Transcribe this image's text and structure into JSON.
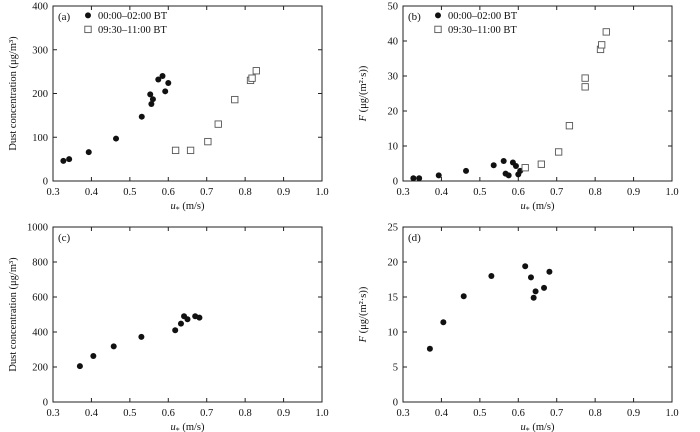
{
  "chart_data": [
    {
      "type": "scatter",
      "tag": "(a)",
      "ylabel": "Dust concentration (μg/m³)",
      "xlabel_main": "u",
      "xlabel_sub": "*",
      "xlabel_unit": " (m/s)",
      "xlim": [
        0.3,
        1.0
      ],
      "ylim": [
        0,
        400
      ],
      "xticks": [
        0.3,
        0.4,
        0.5,
        0.6,
        0.7,
        0.8,
        0.9,
        1.0
      ],
      "xtick_labels": [
        "0.3",
        "0.4",
        "0.5",
        "0.6",
        "0.7",
        "0.8",
        "0.9",
        "1.0"
      ],
      "yticks": [
        0,
        100,
        200,
        300,
        400
      ],
      "ytick_labels": [
        "0",
        "100",
        "200",
        "300",
        "400"
      ],
      "legend": "top-left",
      "series": [
        {
          "name": "00:00–02:00 BT",
          "marker": "filled-circle",
          "x": [
            0.327,
            0.342,
            0.393,
            0.464,
            0.531,
            0.553,
            0.556,
            0.56,
            0.574,
            0.585,
            0.592,
            0.6
          ],
          "y": [
            46,
            50,
            66,
            97,
            147,
            198,
            176,
            187,
            232,
            240,
            205,
            224
          ]
        },
        {
          "name": "09:30–11:00 BT",
          "marker": "open-square",
          "x": [
            0.619,
            0.658,
            0.703,
            0.73,
            0.773,
            0.814,
            0.818,
            0.829
          ],
          "y": [
            70,
            70,
            90,
            130,
            186,
            230,
            235,
            252
          ]
        }
      ]
    },
    {
      "type": "scatter",
      "tag": "(b)",
      "ylabel_main": "F",
      "ylabel_unit": " (μg/(m²·s))",
      "xlabel_main": "u",
      "xlabel_sub": "*",
      "xlabel_unit": " (m/s)",
      "xlim": [
        0.3,
        1.0
      ],
      "ylim": [
        0,
        50
      ],
      "xticks": [
        0.3,
        0.4,
        0.5,
        0.6,
        0.7,
        0.8,
        0.9,
        1.0
      ],
      "xtick_labels": [
        "0.3",
        "0.4",
        "0.5",
        "0.6",
        "0.7",
        "0.8",
        "0.9",
        "1.0"
      ],
      "yticks": [
        0,
        10,
        20,
        30,
        40,
        50
      ],
      "ytick_labels": [
        "0",
        "10",
        "20",
        "30",
        "40",
        "50"
      ],
      "legend": "top-left",
      "series": [
        {
          "name": "00:00–02:00 BT",
          "marker": "filled-circle",
          "x": [
            0.327,
            0.342,
            0.393,
            0.464,
            0.536,
            0.562,
            0.567,
            0.575,
            0.586,
            0.594,
            0.6,
            0.605
          ],
          "y": [
            0.8,
            0.8,
            1.6,
            2.9,
            4.5,
            5.7,
            2.1,
            1.6,
            5.3,
            4.3,
            1.9,
            2.9
          ]
        },
        {
          "name": "09:30–11:00 BT",
          "marker": "open-square",
          "x": [
            0.618,
            0.66,
            0.705,
            0.733,
            0.774,
            0.774,
            0.814,
            0.817,
            0.829
          ],
          "y": [
            3.8,
            4.8,
            8.3,
            15.8,
            26.9,
            29.4,
            37.6,
            38.9,
            42.6
          ]
        }
      ]
    },
    {
      "type": "scatter",
      "tag": "(c)",
      "ylabel": "Dust concentration (μg/m³)",
      "xlabel_main": "u",
      "xlabel_sub": "*",
      "xlabel_unit": " (m/s)",
      "xlim": [
        0.3,
        1.0
      ],
      "ylim": [
        0,
        1000
      ],
      "xticks": [
        0.3,
        0.4,
        0.5,
        0.6,
        0.7,
        0.8,
        0.9,
        1.0
      ],
      "xtick_labels": [
        "0.3",
        "0.4",
        "0.5",
        "0.6",
        "0.7",
        "0.8",
        "0.9",
        "1.0"
      ],
      "yticks": [
        0,
        200,
        400,
        600,
        800,
        1000
      ],
      "ytick_labels": [
        "0",
        "200",
        "400",
        "600",
        "800",
        "1000"
      ],
      "series": [
        {
          "marker": "filled-circle",
          "x": [
            0.37,
            0.405,
            0.458,
            0.53,
            0.618,
            0.633,
            0.641,
            0.65,
            0.67,
            0.681
          ],
          "y": [
            205,
            263,
            318,
            372,
            410,
            448,
            490,
            473,
            490,
            482
          ]
        }
      ]
    },
    {
      "type": "scatter",
      "tag": "(d)",
      "ylabel_main": "F",
      "ylabel_unit": " (μg/(m²·s))",
      "xlabel_main": "u",
      "xlabel_sub": "*",
      "xlabel_unit": " (m/s)",
      "xlim": [
        0.3,
        1.0
      ],
      "ylim": [
        0,
        25
      ],
      "xticks": [
        0.3,
        0.4,
        0.5,
        0.6,
        0.7,
        0.8,
        0.9,
        1.0
      ],
      "xtick_labels": [
        "0.3",
        "0.4",
        "0.5",
        "0.6",
        "0.7",
        "0.8",
        "0.9",
        "1.0"
      ],
      "yticks": [
        0,
        5,
        10,
        15,
        20,
        25
      ],
      "ytick_labels": [
        "0",
        "5",
        "10",
        "15",
        "20",
        "25"
      ],
      "series": [
        {
          "marker": "filled-circle",
          "x": [
            0.37,
            0.405,
            0.458,
            0.53,
            0.618,
            0.633,
            0.64,
            0.645,
            0.667,
            0.681
          ],
          "y": [
            7.6,
            11.4,
            15.1,
            18.0,
            19.4,
            17.8,
            14.9,
            15.8,
            16.3,
            18.6
          ]
        }
      ]
    }
  ]
}
